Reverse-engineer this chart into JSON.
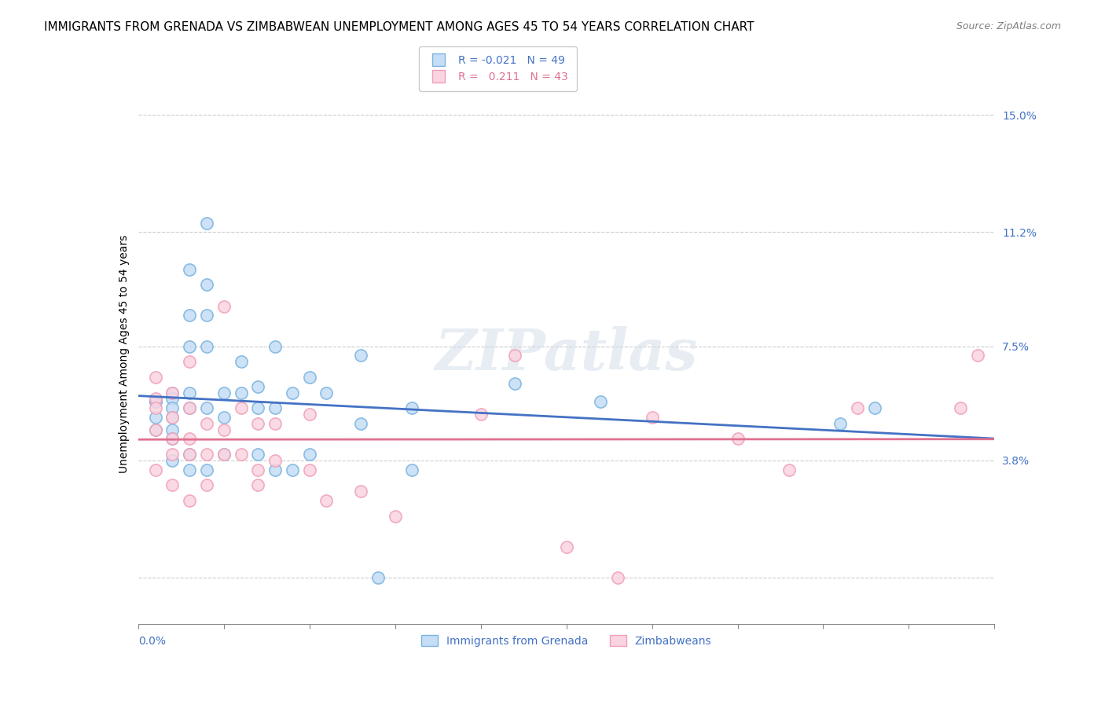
{
  "title": "IMMIGRANTS FROM GRENADA VS ZIMBABWEAN UNEMPLOYMENT AMONG AGES 45 TO 54 YEARS CORRELATION CHART",
  "source": "Source: ZipAtlas.com",
  "ylabel": "Unemployment Among Ages 45 to 54 years",
  "right_yticks": [
    0.0,
    0.038,
    0.075,
    0.112,
    0.15
  ],
  "right_yticklabels": [
    "",
    "3.8%",
    "7.5%",
    "11.2%",
    "15.0%"
  ],
  "xlim": [
    0.0,
    0.05
  ],
  "ylim": [
    -0.015,
    0.16
  ],
  "blue_scatter_x": [
    0.001,
    0.001,
    0.001,
    0.001,
    0.002,
    0.002,
    0.002,
    0.002,
    0.002,
    0.002,
    0.002,
    0.003,
    0.003,
    0.003,
    0.003,
    0.003,
    0.003,
    0.003,
    0.004,
    0.004,
    0.004,
    0.004,
    0.004,
    0.004,
    0.005,
    0.005,
    0.005,
    0.006,
    0.006,
    0.007,
    0.007,
    0.007,
    0.008,
    0.008,
    0.008,
    0.009,
    0.009,
    0.01,
    0.01,
    0.011,
    0.013,
    0.013,
    0.014,
    0.016,
    0.016,
    0.022,
    0.027,
    0.041,
    0.043
  ],
  "blue_scatter_y": [
    0.057,
    0.057,
    0.052,
    0.048,
    0.06,
    0.058,
    0.055,
    0.052,
    0.048,
    0.045,
    0.038,
    0.1,
    0.085,
    0.075,
    0.06,
    0.055,
    0.04,
    0.035,
    0.115,
    0.095,
    0.085,
    0.075,
    0.055,
    0.035,
    0.06,
    0.052,
    0.04,
    0.07,
    0.06,
    0.062,
    0.055,
    0.04,
    0.075,
    0.055,
    0.035,
    0.06,
    0.035,
    0.065,
    0.04,
    0.06,
    0.072,
    0.05,
    0.0,
    0.055,
    0.035,
    0.063,
    0.057,
    0.05,
    0.055
  ],
  "pink_scatter_x": [
    0.001,
    0.001,
    0.001,
    0.001,
    0.001,
    0.002,
    0.002,
    0.002,
    0.002,
    0.002,
    0.003,
    0.003,
    0.003,
    0.003,
    0.003,
    0.004,
    0.004,
    0.004,
    0.005,
    0.005,
    0.005,
    0.006,
    0.006,
    0.007,
    0.007,
    0.007,
    0.008,
    0.008,
    0.01,
    0.01,
    0.011,
    0.013,
    0.015,
    0.02,
    0.022,
    0.025,
    0.028,
    0.03,
    0.035,
    0.038,
    0.042,
    0.048,
    0.049
  ],
  "pink_scatter_y": [
    0.065,
    0.058,
    0.055,
    0.048,
    0.035,
    0.06,
    0.052,
    0.045,
    0.04,
    0.03,
    0.07,
    0.055,
    0.045,
    0.04,
    0.025,
    0.05,
    0.04,
    0.03,
    0.088,
    0.048,
    0.04,
    0.055,
    0.04,
    0.05,
    0.035,
    0.03,
    0.05,
    0.038,
    0.053,
    0.035,
    0.025,
    0.028,
    0.02,
    0.053,
    0.072,
    0.01,
    0.0,
    0.052,
    0.045,
    0.035,
    0.055,
    0.055,
    0.072
  ],
  "blue_face_color": "#c5ddf5",
  "blue_edge_color": "#7ab3e0",
  "pink_face_color": "#fad4e0",
  "pink_edge_color": "#f0a0b8",
  "blue_line_color": "#4472c4",
  "pink_line_color": "#e07090",
  "axis_label_color": "#4472c4",
  "grid_color": "#cccccc",
  "watermark": "ZIPatlas",
  "title_fontsize": 11,
  "source_fontsize": 9,
  "scatter_size": 120,
  "legend1_labels": [
    "R = -0.021   N = 49",
    "R =   0.211   N = 43"
  ],
  "legend2_labels": [
    "Immigrants from Grenada",
    "Zimbabweans"
  ]
}
